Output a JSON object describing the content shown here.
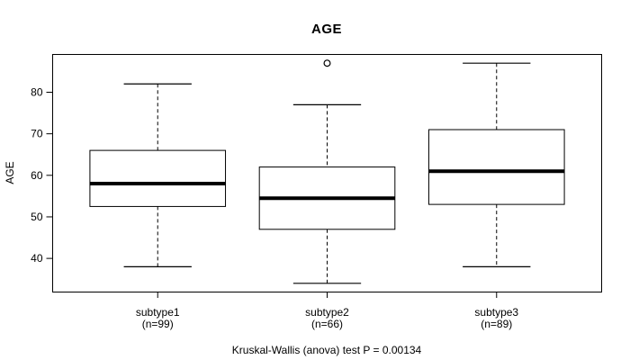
{
  "chart_data": {
    "type": "boxplot",
    "title": "AGE",
    "xlabel": "",
    "ylabel": "AGE",
    "ylim": [
      31.9,
      89.1
    ],
    "yticks": [
      40,
      50,
      60,
      70,
      80
    ],
    "grid": false,
    "legend": null,
    "groups": [
      {
        "label": "subtype1",
        "n": 99,
        "n_label": "(n=99)",
        "whisker_low": 38,
        "q1": 52.5,
        "median": 58,
        "q3": 66,
        "whisker_high": 82,
        "outliers": []
      },
      {
        "label": "subtype2",
        "n": 66,
        "n_label": "(n=66)",
        "whisker_low": 34,
        "q1": 47,
        "median": 54.5,
        "q3": 62,
        "whisker_high": 77,
        "outliers": [
          87
        ]
      },
      {
        "label": "subtype3",
        "n": 89,
        "n_label": "(n=89)",
        "whisker_low": 38,
        "q1": 53,
        "median": 61,
        "q3": 71,
        "whisker_high": 87,
        "outliers": []
      }
    ],
    "caption": "Kruskal-Wallis (anova) test P = 0.00134",
    "colors": {
      "line": "#000000",
      "box_fill": "#ffffff",
      "background": "#ffffff",
      "text": "#000000"
    }
  }
}
